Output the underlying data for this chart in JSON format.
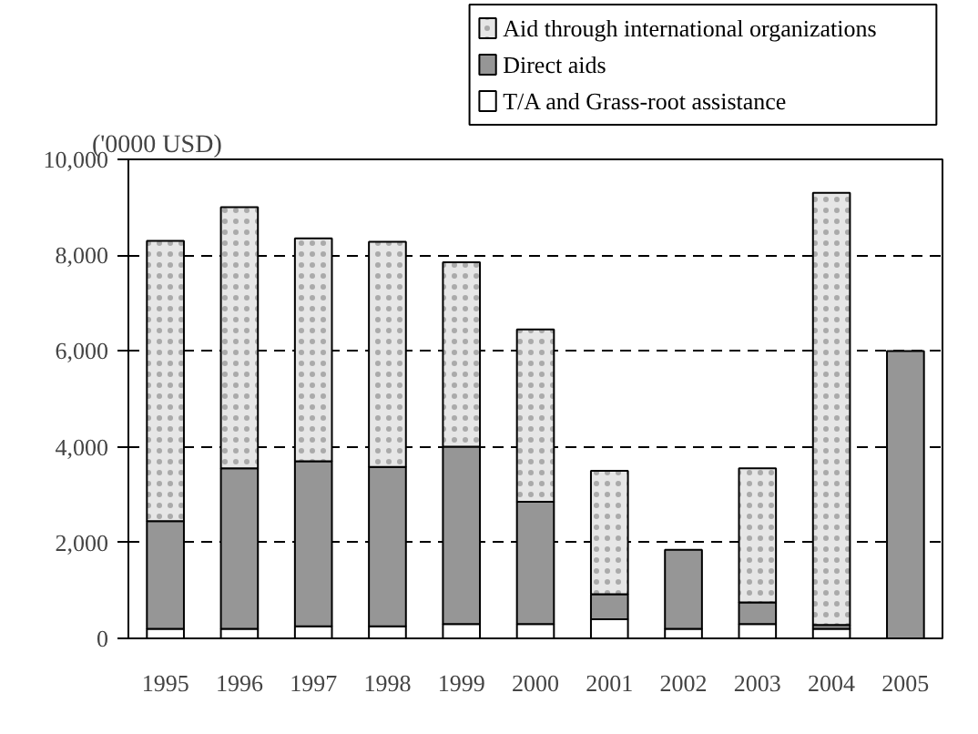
{
  "chart_data": {
    "type": "bar",
    "stacked": true,
    "ylabel": "('0000 USD)",
    "categories": [
      "1995",
      "1996",
      "1997",
      "1998",
      "1999",
      "2000",
      "2001",
      "2002",
      "2003",
      "2004",
      "2005"
    ],
    "series": [
      {
        "name": "T/A and Grass-root assistance",
        "color": "#ffffff",
        "values": [
          200,
          200,
          250,
          250,
          300,
          300,
          400,
          200,
          300,
          200,
          null
        ]
      },
      {
        "name": "Direct aids",
        "color": "#969696",
        "values": [
          2250,
          3350,
          3450,
          3330,
          3700,
          2550,
          520,
          1650,
          450,
          80,
          6000
        ]
      },
      {
        "name": "Aid through international organizations",
        "color": "#e6e6e6",
        "values": [
          5850,
          5450,
          4650,
          4700,
          3850,
          3600,
          2580,
          null,
          2800,
          9020,
          null
        ]
      }
    ],
    "ylim": [
      0,
      10000
    ],
    "yticks": [
      0,
      {
        "value": 2000,
        "label": "2,000"
      },
      {
        "value": 4000,
        "label": "4,000"
      },
      {
        "value": 6000,
        "label": "6,000"
      },
      {
        "value": 8000,
        "label": "8,000"
      },
      {
        "value": 10000,
        "label": "10,000"
      }
    ],
    "grid": "y",
    "legend": "top right"
  }
}
